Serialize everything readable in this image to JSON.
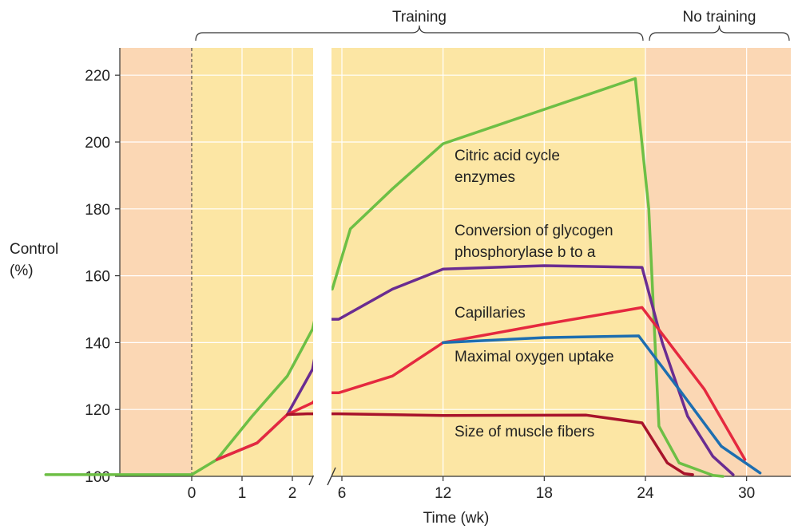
{
  "chart_data": {
    "type": "line",
    "title": "",
    "xlabel": "Time (wk)",
    "ylabel_lines": [
      "Control",
      "(%)"
    ],
    "ylim": [
      100,
      228
    ],
    "y_ticks": [
      100,
      120,
      140,
      160,
      180,
      200,
      220
    ],
    "x_ticks_pre_break": [
      0,
      1,
      2
    ],
    "x_ticks_post_break": [
      6,
      12,
      18,
      24,
      30
    ],
    "axis_break": "between 2 and 6 weeks",
    "grid": true,
    "phases": [
      {
        "label": "Training",
        "from_week": 0,
        "to_week": 24,
        "color": "#fce6a4"
      },
      {
        "label": "No training",
        "from_week": 24,
        "to_week": 31.5,
        "color": "#fbd7b4"
      }
    ],
    "before_color": "#fbd7b4",
    "series": [
      {
        "name": "Citric acid cycle enzymes",
        "label_lines": [
          "Citric acid cycle",
          "enzymes"
        ],
        "color": "#6dbf45",
        "points": [
          [
            -2.9,
            100.5
          ],
          [
            0,
            100.5
          ],
          [
            0.5,
            105
          ],
          [
            1.2,
            118
          ],
          [
            1.9,
            130
          ],
          [
            2.4,
            144
          ],
          [
            2.9,
            156
          ],
          [
            4.5,
            156
          ],
          [
            6.5,
            174
          ],
          [
            9,
            186
          ],
          [
            12,
            199.5
          ],
          [
            23.4,
            219
          ],
          [
            24.2,
            180
          ],
          [
            24.8,
            115
          ],
          [
            26,
            104
          ],
          [
            28,
            100.3
          ],
          [
            28.6,
            100
          ]
        ]
      },
      {
        "name": "Conversion of glycogen phosphorylase b to a",
        "label_lines": [
          "Conversion of glycogen",
          "phosphorylase b to a"
        ],
        "color": "#6a2c91",
        "points": [
          [
            0.5,
            105
          ],
          [
            1.3,
            110
          ],
          [
            1.9,
            118.5
          ],
          [
            2.4,
            132
          ],
          [
            2.9,
            147
          ],
          [
            5.5,
            147
          ],
          [
            9,
            156
          ],
          [
            12,
            162
          ],
          [
            18,
            163
          ],
          [
            23.8,
            162.5
          ],
          [
            25,
            140
          ],
          [
            26.5,
            118
          ],
          [
            28,
            106
          ],
          [
            29.2,
            100.5
          ]
        ]
      },
      {
        "name": "Capillaries",
        "label_lines": [
          "Capillaries"
        ],
        "color": "#e5293f",
        "points": [
          [
            0.5,
            105
          ],
          [
            1.3,
            110
          ],
          [
            1.9,
            118.5
          ],
          [
            2.4,
            122
          ],
          [
            2.9,
            125
          ],
          [
            5.5,
            125
          ],
          [
            9,
            130
          ],
          [
            12,
            140
          ],
          [
            18,
            145.5
          ],
          [
            23.8,
            150.5
          ],
          [
            27.5,
            126
          ],
          [
            29.9,
            105
          ]
        ]
      },
      {
        "name": "Maximal oxygen uptake",
        "label_lines": [
          "Maximal oxygen uptake"
        ],
        "color": "#1d6eb0",
        "points": [
          [
            12,
            140
          ],
          [
            18,
            141.5
          ],
          [
            23.6,
            142
          ],
          [
            26,
            126
          ],
          [
            28.5,
            109
          ],
          [
            30.8,
            101
          ]
        ]
      },
      {
        "name": "Size of muscle fibers",
        "label_lines": [
          "Size of muscle fibers"
        ],
        "color": "#a8132b",
        "points": [
          [
            1.9,
            118.5
          ],
          [
            2.3,
            118.7
          ],
          [
            2.9,
            118.7
          ],
          [
            5.5,
            118.7
          ],
          [
            12,
            118.2
          ],
          [
            20.5,
            118.3
          ],
          [
            23.8,
            116
          ],
          [
            25.3,
            104
          ],
          [
            26.3,
            100.8
          ],
          [
            26.8,
            100.5
          ]
        ]
      }
    ]
  }
}
